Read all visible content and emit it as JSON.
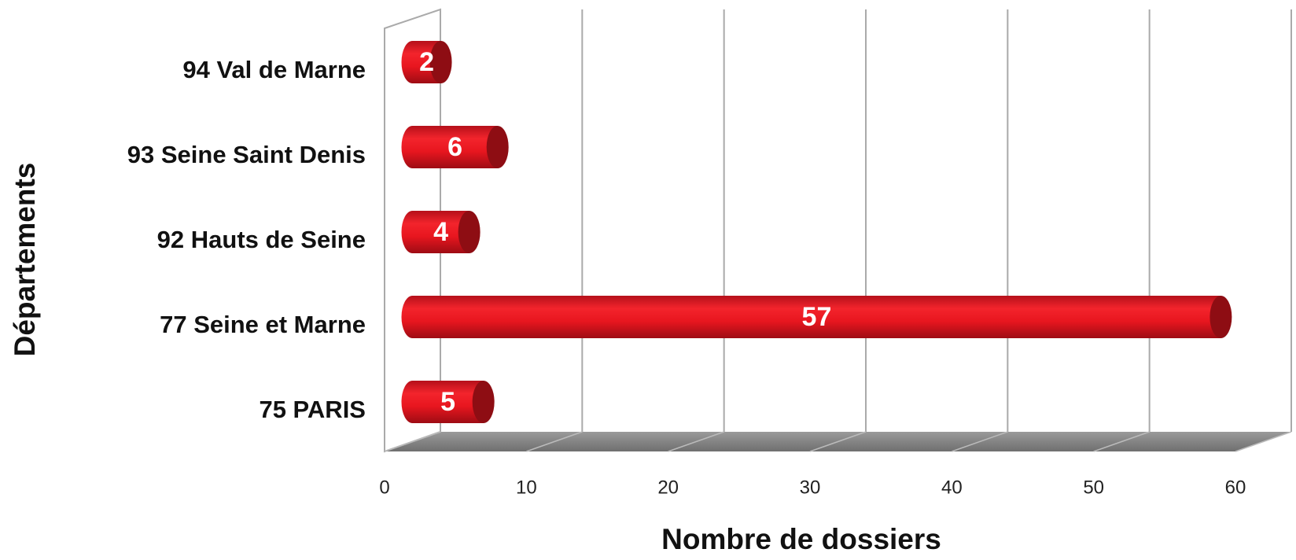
{
  "chart_data": {
    "type": "bar",
    "orientation": "horizontal",
    "categories": [
      "75 PARIS",
      "77 Seine et Marne",
      "92 Hauts de Seine",
      "93 Seine Saint Denis",
      "94 Val de Marne"
    ],
    "values": [
      5,
      57,
      4,
      6,
      2
    ],
    "color": "#e8161f",
    "xlabel": "Nombre de dossiers",
    "ylabel": "Départements",
    "xlim": [
      0,
      60
    ],
    "xticks": [
      0,
      10,
      20,
      30,
      40,
      50,
      60
    ],
    "grid": true
  }
}
